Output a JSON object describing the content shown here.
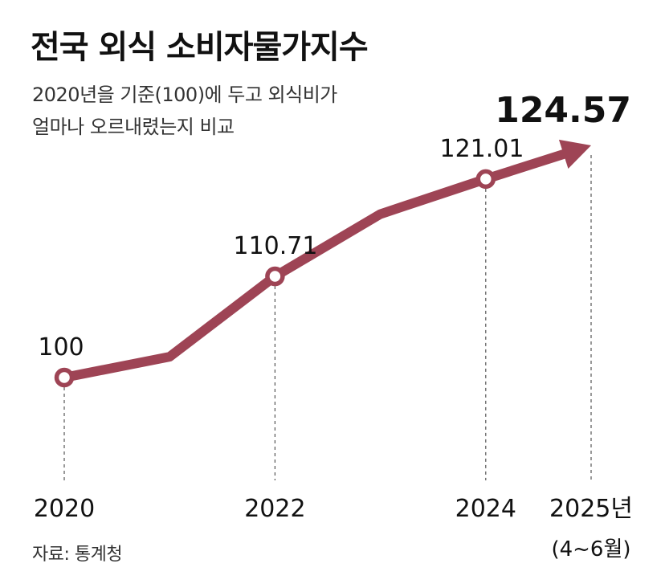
{
  "header": {
    "title": "전국 외식 소비자물가지수",
    "subtitle_line1": "2020년을 기준(100)에 두고 외식비가",
    "subtitle_line2": "얼마나 오르내렸는지 비교"
  },
  "footer": {
    "source": "자료: 통계청"
  },
  "chart_data": {
    "type": "line",
    "title": "전국 외식 소비자물가지수",
    "subtitle": "2020년을 기준(100)에 두고 외식비가 얼마나 오르내렸는지 비교",
    "x": [
      2020,
      2021,
      2022,
      2023,
      2024,
      2025
    ],
    "values": [
      100,
      102.2,
      110.71,
      117.3,
      121.01,
      124.57
    ],
    "data_labels": [
      "100",
      "",
      "110.71",
      "",
      "121.01",
      "124.57"
    ],
    "marker_indices": [
      0,
      2,
      4
    ],
    "final_arrow": true,
    "x_tick_labels": [
      {
        "x": 2020,
        "label": "2020"
      },
      {
        "x": 2022,
        "label": "2022"
      },
      {
        "x": 2024,
        "label": "2024"
      },
      {
        "x": 2025,
        "label": "2025년",
        "sublabel": "(4~6월)"
      }
    ],
    "ylim": [
      97,
      126
    ],
    "grid": false,
    "colors": {
      "line": "#9e4455",
      "marker_fill": "#ffffff",
      "text": "#111111",
      "guide": "#555555"
    },
    "source": "자료: 통계청"
  }
}
